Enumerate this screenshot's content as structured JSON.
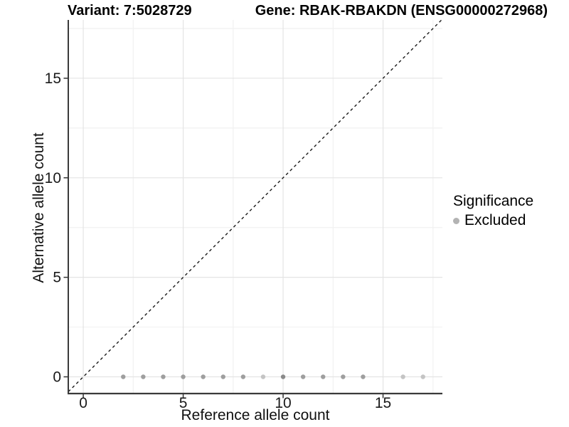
{
  "titles": {
    "left": "Variant: 7:5028729",
    "right": "Gene: RBAK-RBAKDN (ENSG00000272968)"
  },
  "chart_data": {
    "type": "scatter",
    "title": "Variant: 7:5028729  /  Gene: RBAK-RBAKDN (ENSG00000272968)",
    "xlabel": "Reference allele count",
    "ylabel": "Alternative allele count",
    "xlim": [
      -0.75,
      17.97
    ],
    "ylim": [
      -0.84,
      17.93
    ],
    "x_major_ticks": [
      0,
      5,
      10,
      15
    ],
    "y_major_ticks": [
      0,
      5,
      10,
      15
    ],
    "x_minor_gridlines": [
      2.5,
      7.5,
      12.5,
      17.5
    ],
    "y_minor_gridlines": [
      2.5,
      7.5,
      12.5,
      17.5
    ],
    "grid": true,
    "identity_line": {
      "style": "dashed",
      "slope": 1,
      "intercept": 0
    },
    "series": [
      {
        "name": "Excluded",
        "points": [
          {
            "x": 2,
            "y": 0,
            "shade": "mid"
          },
          {
            "x": 3,
            "y": 0,
            "shade": "mid"
          },
          {
            "x": 4,
            "y": 0,
            "shade": "mid"
          },
          {
            "x": 5,
            "y": 0,
            "shade": "mid"
          },
          {
            "x": 6,
            "y": 0,
            "shade": "mid"
          },
          {
            "x": 7,
            "y": 0,
            "shade": "mid"
          },
          {
            "x": 8,
            "y": 0,
            "shade": "mid"
          },
          {
            "x": 9,
            "y": 0,
            "shade": "light"
          },
          {
            "x": 10,
            "y": 0,
            "shade": "dark"
          },
          {
            "x": 11,
            "y": 0,
            "shade": "mid"
          },
          {
            "x": 12,
            "y": 0,
            "shade": "mid"
          },
          {
            "x": 13,
            "y": 0,
            "shade": "mid"
          },
          {
            "x": 14,
            "y": 0,
            "shade": "mid"
          },
          {
            "x": 16,
            "y": 0,
            "shade": "light"
          },
          {
            "x": 17,
            "y": 0,
            "shade": "light"
          }
        ]
      }
    ],
    "legend": {
      "title": "Significance",
      "position": "right",
      "items": [
        {
          "label": "Excluded",
          "color": "#b3b3b3"
        }
      ]
    },
    "colors": {
      "background": "#ffffff",
      "point_mid": "#9e9e9e",
      "point_light": "#c4c4c4",
      "point_dark": "#8a8a8a",
      "grid_major": "#e4e4e4",
      "grid_minor": "#f1f1f1",
      "axis_line": "#3a3a3a",
      "tick_mark": "#333333",
      "tick_label": "#1a1a1a",
      "identity_line": "#1a1a1a"
    }
  }
}
